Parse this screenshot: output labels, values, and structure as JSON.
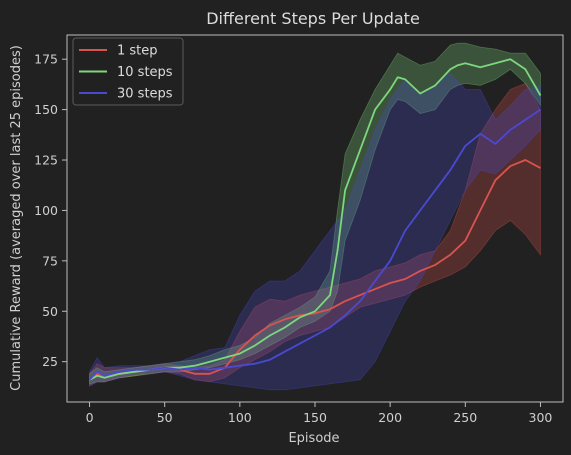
{
  "chart_data": {
    "type": "line",
    "title": "Different Steps Per Update",
    "xlabel": "Episode",
    "ylabel": "Cumulative Reward (averaged over last 25 episodes)",
    "xlim": [
      -15,
      315
    ],
    "ylim": [
      5,
      187
    ],
    "xticks": [
      0,
      50,
      100,
      150,
      200,
      250,
      300
    ],
    "yticks": [
      25,
      50,
      75,
      100,
      125,
      150,
      175
    ],
    "grid": false,
    "legend": "top-left",
    "background": "#212121",
    "series": [
      {
        "name": "1 step",
        "color": "#d9534f",
        "x": [
          0,
          5,
          10,
          20,
          30,
          40,
          50,
          60,
          70,
          80,
          90,
          100,
          110,
          120,
          130,
          140,
          150,
          160,
          170,
          180,
          190,
          200,
          210,
          220,
          230,
          240,
          250,
          260,
          270,
          280,
          290,
          300
        ],
        "mean": [
          16,
          19,
          18,
          19,
          20,
          21,
          22,
          21,
          19,
          19,
          22,
          31,
          38,
          43,
          46,
          48,
          49,
          51,
          55,
          58,
          61,
          64,
          66,
          70,
          73,
          78,
          85,
          100,
          115,
          122,
          125,
          121
        ],
        "upper": [
          19,
          24,
          22,
          22,
          22,
          23,
          24,
          23,
          22,
          23,
          26,
          40,
          52,
          56,
          55,
          58,
          60,
          62,
          64,
          66,
          70,
          72,
          74,
          78,
          80,
          90,
          110,
          138,
          150,
          160,
          163,
          150
        ],
        "lower": [
          13,
          15,
          15,
          17,
          18,
          19,
          20,
          19,
          16,
          15,
          17,
          22,
          26,
          30,
          35,
          38,
          40,
          42,
          47,
          52,
          54,
          56,
          58,
          62,
          65,
          68,
          72,
          80,
          90,
          95,
          88,
          78
        ]
      },
      {
        "name": "10 steps",
        "color": "#7ed67e",
        "x": [
          0,
          5,
          10,
          20,
          30,
          40,
          50,
          60,
          70,
          80,
          90,
          100,
          110,
          120,
          130,
          140,
          150,
          160,
          165,
          170,
          180,
          190,
          200,
          205,
          210,
          220,
          230,
          240,
          245,
          250,
          260,
          270,
          280,
          290,
          300
        ],
        "mean": [
          16,
          18,
          17,
          19,
          20,
          21,
          22,
          22,
          23,
          25,
          27,
          29,
          33,
          38,
          42,
          47,
          50,
          58,
          80,
          110,
          130,
          150,
          160,
          166,
          165,
          158,
          162,
          170,
          172,
          173,
          171,
          173,
          175,
          170,
          157
        ],
        "upper": [
          19,
          22,
          20,
          21,
          22,
          23,
          24,
          25,
          26,
          28,
          31,
          33,
          37,
          44,
          48,
          52,
          57,
          70,
          100,
          128,
          145,
          160,
          172,
          178,
          176,
          172,
          174,
          182,
          183,
          183,
          181,
          180,
          178,
          178,
          168
        ],
        "lower": [
          14,
          15,
          15,
          17,
          18,
          19,
          20,
          20,
          21,
          22,
          24,
          26,
          29,
          33,
          37,
          42,
          45,
          50,
          60,
          85,
          105,
          130,
          150,
          155,
          154,
          148,
          150,
          160,
          162,
          163,
          162,
          165,
          170,
          163,
          152
        ]
      },
      {
        "name": "30 steps",
        "color": "#4a4ad0",
        "x": [
          0,
          5,
          10,
          20,
          30,
          40,
          50,
          60,
          70,
          80,
          90,
          100,
          110,
          120,
          130,
          140,
          150,
          160,
          170,
          180,
          190,
          200,
          210,
          220,
          230,
          240,
          250,
          260,
          270,
          280,
          290,
          300
        ],
        "mean": [
          16,
          20,
          18,
          20,
          21,
          21,
          22,
          21,
          22,
          21,
          22,
          23,
          24,
          26,
          30,
          34,
          38,
          42,
          48,
          55,
          65,
          75,
          90,
          100,
          110,
          120,
          132,
          138,
          133,
          140,
          145,
          150
        ],
        "upper": [
          20,
          27,
          22,
          23,
          23,
          23,
          24,
          25,
          28,
          31,
          32,
          48,
          60,
          65,
          65,
          70,
          80,
          90,
          100,
          120,
          140,
          155,
          165,
          158,
          162,
          168,
          160,
          160,
          145,
          152,
          160,
          162
        ],
        "lower": [
          13,
          15,
          15,
          17,
          19,
          19,
          20,
          18,
          16,
          15,
          14,
          13,
          12,
          11,
          11,
          12,
          13,
          14,
          15,
          16,
          25,
          40,
          55,
          65,
          80,
          95,
          110,
          120,
          118,
          125,
          132,
          140
        ]
      }
    ]
  }
}
